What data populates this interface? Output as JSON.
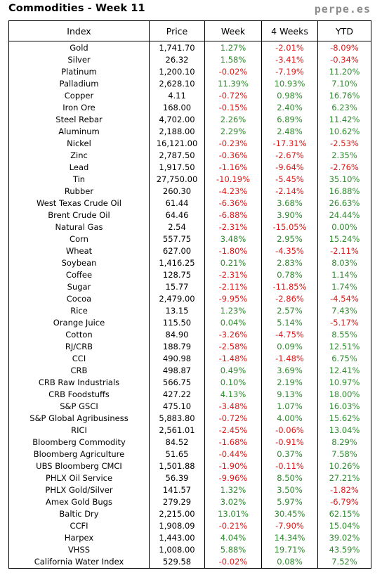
{
  "header": {
    "title": "Commodities - Week 11",
    "site": "perpe.es"
  },
  "colors": {
    "positive": "#2e8b2e",
    "negative": "#e01818"
  },
  "columns": [
    "Index",
    "Price",
    "Week",
    "4 Weeks",
    "YTD"
  ],
  "rows": [
    [
      "Gold",
      "1,741.70",
      "1.27%",
      "-2.01%",
      "-8.09%"
    ],
    [
      "Silver",
      "26.32",
      "1.58%",
      "-3.41%",
      "-0.34%"
    ],
    [
      "Platinum",
      "1,200.10",
      "-0.02%",
      "-7.19%",
      "11.20%"
    ],
    [
      "Palladium",
      "2,628.10",
      "11.39%",
      "10.93%",
      "7.10%"
    ],
    [
      "Copper",
      "4.11",
      "-0.72%",
      "0.98%",
      "16.76%"
    ],
    [
      "Iron Ore",
      "168.00",
      "-0.15%",
      "2.40%",
      "6.23%"
    ],
    [
      "Steel Rebar",
      "4,702.00",
      "2.26%",
      "6.89%",
      "11.42%"
    ],
    [
      "Aluminum",
      "2,188.00",
      "2.29%",
      "2.48%",
      "10.62%"
    ],
    [
      "Nickel",
      "16,121.00",
      "-0.23%",
      "-17.31%",
      "-2.53%"
    ],
    [
      "Zinc",
      "2,787.50",
      "-0.36%",
      "-2.67%",
      "2.35%"
    ],
    [
      "Lead",
      "1,917.50",
      "-1.16%",
      "-9.64%",
      "-2.76%"
    ],
    [
      "Tin",
      "27,750.00",
      "-10.19%",
      "-5.45%",
      "35.10%"
    ],
    [
      "Rubber",
      "260.30",
      "-4.23%",
      "-2.14%",
      "16.88%"
    ],
    [
      "West Texas Crude Oil",
      "61.44",
      "-6.36%",
      "3.68%",
      "26.63%"
    ],
    [
      "Brent Crude Oil",
      "64.46",
      "-6.88%",
      "3.90%",
      "24.44%"
    ],
    [
      "Natural Gas",
      "2.54",
      "-2.31%",
      "-15.05%",
      "0.00%"
    ],
    [
      "Corn",
      "557.75",
      "3.48%",
      "2.95%",
      "15.24%"
    ],
    [
      "Wheat",
      "627.00",
      "-1.80%",
      "-4.35%",
      "-2.11%"
    ],
    [
      "Soybean",
      "1,416.25",
      "0.21%",
      "2.83%",
      "8.03%"
    ],
    [
      "Coffee",
      "128.75",
      "-2.31%",
      "0.78%",
      "1.14%"
    ],
    [
      "Sugar",
      "15.77",
      "-2.11%",
      "-11.85%",
      "1.74%"
    ],
    [
      "Cocoa",
      "2,479.00",
      "-9.95%",
      "-2.86%",
      "-4.54%"
    ],
    [
      "Rice",
      "13.15",
      "1.23%",
      "2.57%",
      "7.43%"
    ],
    [
      "Orange Juice",
      "115.50",
      "0.04%",
      "5.14%",
      "-5.17%"
    ],
    [
      "Cotton",
      "84.90",
      "-3.26%",
      "-4.75%",
      "8.55%"
    ],
    [
      "RJ/CRB",
      "188.79",
      "-2.58%",
      "0.09%",
      "12.51%"
    ],
    [
      "CCI",
      "490.98",
      "-1.48%",
      "-1.48%",
      "6.75%"
    ],
    [
      "CRB",
      "498.87",
      "0.49%",
      "3.69%",
      "12.41%"
    ],
    [
      "CRB Raw Industrials",
      "566.75",
      "0.10%",
      "2.19%",
      "10.97%"
    ],
    [
      "CRB Foodstuffs",
      "427.22",
      "4.13%",
      "9.13%",
      "18.00%"
    ],
    [
      "S&P GSCI",
      "475.10",
      "-3.48%",
      "1.07%",
      "16.03%"
    ],
    [
      "S&P Global Agribusiness",
      "5,883.80",
      "-0.72%",
      "4.00%",
      "15.62%"
    ],
    [
      "RICI",
      "2,561.01",
      "-2.45%",
      "-0.06%",
      "13.04%"
    ],
    [
      "Bloomberg Commodity",
      "84.52",
      "-1.68%",
      "-0.91%",
      "8.29%"
    ],
    [
      "Bloomberg Agriculture",
      "51.65",
      "-0.44%",
      "0.37%",
      "7.58%"
    ],
    [
      "UBS Bloomberg CMCI",
      "1,501.88",
      "-1.90%",
      "-0.11%",
      "10.26%"
    ],
    [
      "PHLX Oil Service",
      "56.39",
      "-9.96%",
      "8.50%",
      "27.21%"
    ],
    [
      "PHLX Gold/Silver",
      "141.57",
      "1.32%",
      "3.50%",
      "-1.82%"
    ],
    [
      "Amex Gold Bugs",
      "279.29",
      "3.02%",
      "5.97%",
      "-6.79%"
    ],
    [
      "Baltic Dry",
      "2,215.00",
      "13.01%",
      "30.45%",
      "62.15%"
    ],
    [
      "CCFI",
      "1,908.09",
      "-0.21%",
      "-7.90%",
      "15.04%"
    ],
    [
      "Harpex",
      "1,443.00",
      "4.04%",
      "14.34%",
      "39.02%"
    ],
    [
      "VHSS",
      "1,008.00",
      "5.88%",
      "19.71%",
      "43.59%"
    ],
    [
      "California Water Index",
      "529.58",
      "-0.02%",
      "0.08%",
      "7.52%"
    ]
  ]
}
